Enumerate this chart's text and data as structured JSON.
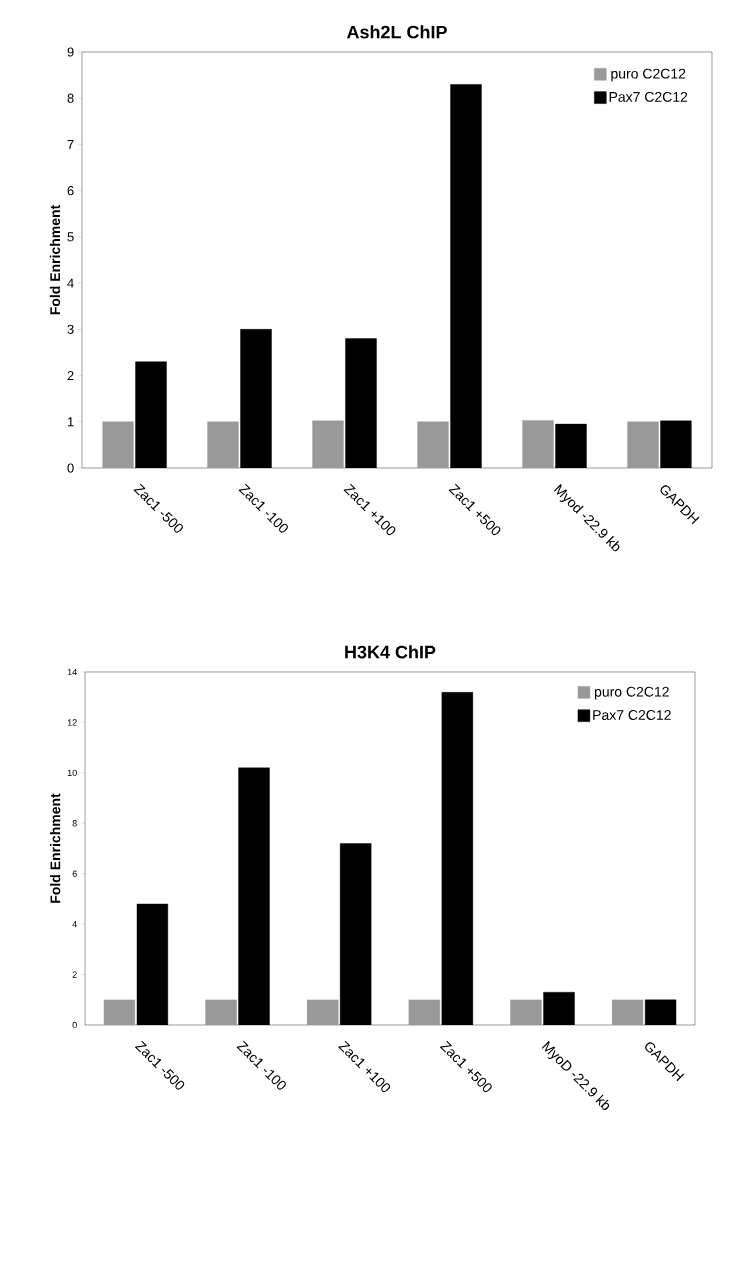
{
  "chart_data": [
    {
      "type": "bar",
      "title": "Ash2L ChIP",
      "ylabel": "Fold Enrichment",
      "categories": [
        "Zac1 -500",
        "Zac1 -100",
        "Zac1 +100",
        "Zac1 +500",
        "Myod -22.9 kb",
        "GAPDH"
      ],
      "series": [
        {
          "name": "puro C2C12",
          "color": "#999999",
          "values": [
            1.0,
            1.0,
            1.02,
            1.0,
            1.03,
            1.0
          ]
        },
        {
          "name": "Pax7 C2C12",
          "color": "#000000",
          "values": [
            2.3,
            3.0,
            2.8,
            8.3,
            0.95,
            1.02
          ]
        }
      ],
      "ylim": [
        0,
        9
      ],
      "yticks": [
        0,
        1,
        2,
        3,
        4,
        5,
        6,
        7,
        8,
        9
      ],
      "legend": "top right"
    },
    {
      "type": "bar",
      "title": "H3K4 ChIP",
      "ylabel": "Fold Enrichment",
      "categories": [
        "Zac1 -500",
        "Zac1 -100",
        "Zac1 +100",
        "Zac1 +500",
        "MyoD -22.9 kb",
        "GAPDH"
      ],
      "series": [
        {
          "name": "puro C2C12",
          "color": "#999999",
          "values": [
            1.0,
            1.0,
            1.0,
            1.0,
            1.0,
            1.0
          ]
        },
        {
          "name": "Pax7 C2C12",
          "color": "#000000",
          "values": [
            4.8,
            10.2,
            7.2,
            13.2,
            1.3,
            1.0
          ]
        }
      ],
      "ylim": [
        0,
        14
      ],
      "yticks": [
        0,
        2,
        4,
        6,
        8,
        10,
        12,
        14
      ],
      "legend": "top right"
    }
  ]
}
